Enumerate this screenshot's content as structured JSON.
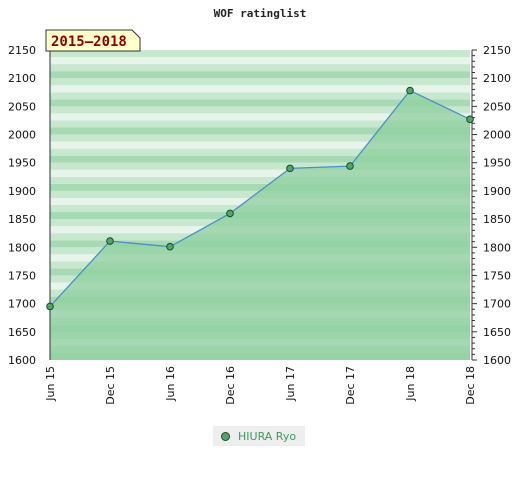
{
  "chart_data": {
    "type": "area",
    "title": "WOF ratinglist",
    "range_badge": "2015–2018",
    "x": [
      "Jun 15",
      "Dec 15",
      "Jun 16",
      "Dec 16",
      "Jun 17",
      "Dec 17",
      "Jun 18",
      "Dec 18"
    ],
    "series": [
      {
        "name": "HIURA Ryo",
        "values": [
          1695,
          1811,
          1801,
          1860,
          1940,
          1944,
          2078,
          2027
        ]
      }
    ],
    "ylim": [
      1600,
      2150
    ],
    "yticks": [
      1600,
      1650,
      1700,
      1750,
      1800,
      1850,
      1900,
      1950,
      2000,
      2050,
      2100,
      2150
    ],
    "y_axis_both_sides": true,
    "grid": "horizontal bands",
    "legend_position": "bottom-center",
    "colors": {
      "area_fill": "#8fcf9f",
      "line": "#4a90c8",
      "marker": "#4fa86a",
      "band_light": "#e6f4e9",
      "band_mid": "#c7e7cf",
      "band_dark": "#a8d9b5",
      "badge_bg": "#ffffcc",
      "badge_text": "#8b0000"
    }
  }
}
